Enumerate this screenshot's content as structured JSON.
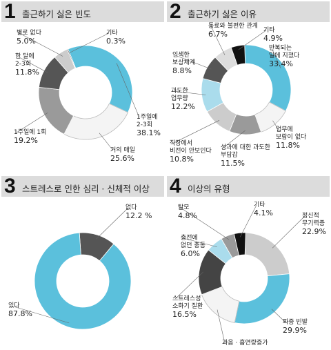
{
  "chart_data": [
    {
      "type": "pie",
      "number": "1",
      "title": "출근하기 싫은 빈도",
      "slices": [
        {
          "label": "1주일에 2-3회",
          "value": 38.1,
          "color": "#5bc0dc"
        },
        {
          "label": "거의 매일",
          "value": 25.6,
          "color": "#f4f4f4"
        },
        {
          "label": "1주일에 1회",
          "value": 19.2,
          "color": "#9a9a9a"
        },
        {
          "label": "한 달에 2-3회",
          "value": 11.8,
          "color": "#555555"
        },
        {
          "label": "별로 없다",
          "value": 5.0,
          "color": "#cccccc"
        },
        {
          "label": "기타",
          "value": 0.3,
          "color": "#111111"
        }
      ],
      "display": [
        {
          "name": "1주일에\n2-3회",
          "val": "38.1%"
        },
        {
          "name": "거의 매일",
          "val": "25.6%"
        },
        {
          "name": "1주일에 1회",
          "val": "19.2%"
        },
        {
          "name": "한 달에\n2-3회",
          "val": "11.8%"
        },
        {
          "name": "별로 없다",
          "val": "5.0%"
        },
        {
          "name": "기타",
          "val": "0.3%"
        }
      ]
    },
    {
      "type": "pie",
      "number": "2",
      "title": "출근하기 싫은 이유",
      "slices": [
        {
          "label": "반복되는 일에 지쳤다",
          "value": 33.4,
          "color": "#5bc0dc"
        },
        {
          "label": "업무에 보람이 없다",
          "value": 11.8,
          "color": "#f4f4f4"
        },
        {
          "label": "성과에 대한 과도한 부담감",
          "value": 11.5,
          "color": "#9a9a9a"
        },
        {
          "label": "직장에서 비전이 안 보인다",
          "value": 10.8,
          "color": "#cccccc"
        },
        {
          "label": "과도한 업무량",
          "value": 12.2,
          "color": "#aadcec"
        },
        {
          "label": "인색한 보상체계",
          "value": 8.8,
          "color": "#555555"
        },
        {
          "label": "동료와 불편한 관계",
          "value": 6.7,
          "color": "#dddddd"
        },
        {
          "label": "기타",
          "value": 4.9,
          "color": "#111111"
        }
      ],
      "display": [
        {
          "name": "반복되는\n일에 지쳤다",
          "val": "33.4%"
        },
        {
          "name": "업무에\n보람이 없다",
          "val": "11.8%"
        },
        {
          "name": "성과에 대한 과도한\n부담감",
          "val": "11.5%"
        },
        {
          "name": "직장에서\n비전이 안보인다",
          "val": "10.8%"
        },
        {
          "name": "과도한\n업무량",
          "val": "12.2%"
        },
        {
          "name": "인색한\n보상체계",
          "val": "8.8%"
        },
        {
          "name": "동료와 불편한 관계",
          "val": "6.7%"
        },
        {
          "name": "기타",
          "val": "4.9%"
        }
      ]
    },
    {
      "type": "pie",
      "number": "3",
      "title": "스트레스로 인한 심리 · 신체적 이상",
      "slices": [
        {
          "label": "없다",
          "value": 12.2,
          "color": "#555555"
        },
        {
          "label": "있다",
          "value": 87.8,
          "color": "#5bc0dc"
        }
      ],
      "display": [
        {
          "name": "없다",
          "val": "12.2 %"
        },
        {
          "name": "있다",
          "val": "87.8%"
        }
      ]
    },
    {
      "type": "pie",
      "number": "4",
      "title": "이상의 유형",
      "slices": [
        {
          "label": "정신적 무기력증",
          "value": 22.9,
          "color": "#cccccc"
        },
        {
          "label": "짜증 빈발",
          "value": 29.9,
          "color": "#5bc0dc"
        },
        {
          "label": "과음·흡연량 증가",
          "value": 15.8,
          "color": "#f4f4f4"
        },
        {
          "label": "스트레스성 소화기 질환",
          "value": 16.5,
          "color": "#444444"
        },
        {
          "label": "충전에 없던 충동",
          "value": 6.0,
          "color": "#aadcec"
        },
        {
          "label": "탈모",
          "value": 4.8,
          "color": "#9a9a9a"
        },
        {
          "label": "기타",
          "value": 4.1,
          "color": "#111111"
        }
      ],
      "display": [
        {
          "name": "정신적\n무기력증",
          "val": "22.9%"
        },
        {
          "name": "짜증 빈발",
          "val": "29.9%"
        },
        {
          "name": "과음 · 흡연량증가",
          "val": "15.8%"
        },
        {
          "name": "스트레스성\n소화기 질환",
          "val": "16.5%"
        },
        {
          "name": "충전에\n없던 충동",
          "val": "6.0%"
        },
        {
          "name": "탈모",
          "val": "4.8%"
        },
        {
          "name": "기타",
          "val": "4.1%"
        }
      ]
    }
  ]
}
